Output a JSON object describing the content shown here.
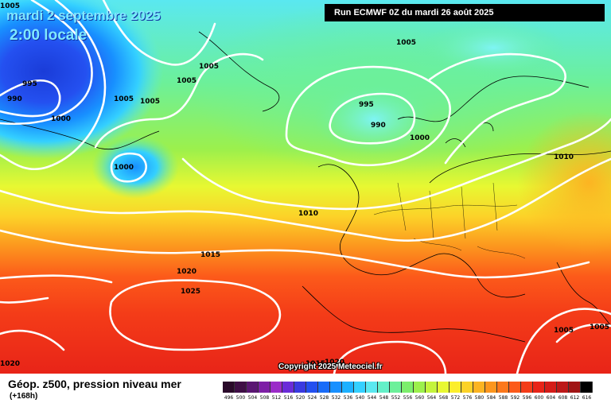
{
  "header": {
    "date": "mardi 2 septembre 2025",
    "time": "2:00 locale",
    "run": "Run ECMWF 0Z du mardi 26 août 2025"
  },
  "copyright": "Copyright 2025 Meteociel.fr",
  "footer": {
    "title": "Géop. z500, pression niveau mer",
    "subtitle": "(+168h)"
  },
  "legend": {
    "values": [
      "496",
      "500",
      "504",
      "508",
      "512",
      "516",
      "520",
      "524",
      "528",
      "532",
      "536",
      "540",
      "544",
      "548",
      "552",
      "556",
      "560",
      "564",
      "568",
      "572",
      "576",
      "580",
      "584",
      "588",
      "592",
      "596",
      "600",
      "604",
      "608",
      "612",
      "616"
    ],
    "colors": [
      "#2a0a2a",
      "#3f0f46",
      "#5a1672",
      "#7d1fa6",
      "#9b2bc8",
      "#6a2bd8",
      "#3a3ae0",
      "#2450f0",
      "#1a6cf8",
      "#1890ff",
      "#1cb0ff",
      "#34d0ff",
      "#5ae8f0",
      "#64f0c8",
      "#6cf09a",
      "#7cee6c",
      "#9cf04c",
      "#c4f43c",
      "#e8f832",
      "#fcee2c",
      "#fcd228",
      "#fcb422",
      "#fc961e",
      "#fc781c",
      "#fc5a1a",
      "#f43c18",
      "#e82418",
      "#d41c18",
      "#bc1818",
      "#a01414",
      "#000000"
    ]
  },
  "isobars": [
    "1005",
    "1005",
    "1005",
    "995",
    "990",
    "1000",
    "1005",
    "1005",
    "1000",
    "1005",
    "995",
    "990",
    "1000",
    "1010",
    "1010",
    "1015",
    "1020",
    "1025",
    "1020",
    "1015",
    "1020",
    "1005",
    "1005"
  ]
}
